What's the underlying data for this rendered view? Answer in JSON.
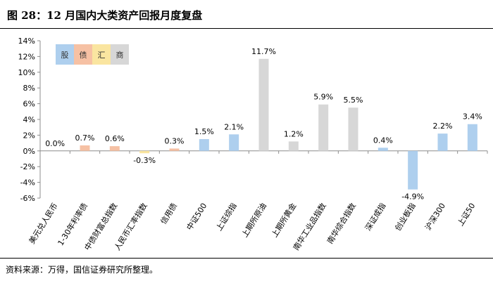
{
  "header": {
    "title": "图 28：12 月国内大类资产回报月度复盘"
  },
  "footer": {
    "source": "资料来源：万得，国信证券研究所整理。"
  },
  "colors": {
    "equity": "#aecfee",
    "bond": "#f6c1a4",
    "fx": "#fae5a0",
    "commodity": "#d7d7d7"
  },
  "chart_data": {
    "type": "bar",
    "title": "",
    "xlabel": "",
    "ylabel": "",
    "ylim": [
      -6,
      14
    ],
    "yticks": [
      "-6%",
      "-4%",
      "-2%",
      "0%",
      "2%",
      "4%",
      "6%",
      "8%",
      "10%",
      "12%",
      "14%"
    ],
    "grid": false,
    "legend": {
      "placement": "top-left",
      "items": [
        {
          "label": "股",
          "class": "equity"
        },
        {
          "label": "债",
          "class": "bond"
        },
        {
          "label": "汇",
          "class": "fx"
        },
        {
          "label": "商",
          "class": "commodity"
        }
      ]
    },
    "categories": [
      "美元兑人民币",
      "1-30年利率债",
      "中债财富总指数",
      "人民币汇率指数",
      "信用债",
      "中证500",
      "上证综指",
      "上期所原油",
      "上期所黄金",
      "南华工业品指数",
      "南华综合指数",
      "深证成指",
      "创业板指",
      "沪深300",
      "上证50"
    ],
    "values": [
      0.0,
      0.7,
      0.6,
      -0.3,
      0.3,
      1.5,
      2.1,
      11.7,
      1.2,
      5.9,
      5.5,
      0.4,
      -4.9,
      2.2,
      3.4
    ],
    "value_labels": [
      "0.0%",
      "0.7%",
      "0.6%",
      "-0.3%",
      "0.3%",
      "1.5%",
      "2.1%",
      "11.7%",
      "1.2%",
      "5.9%",
      "5.5%",
      "0.4%",
      "-4.9%",
      "2.2%",
      "3.4%"
    ],
    "classes": [
      "fx",
      "bond",
      "bond",
      "fx",
      "bond",
      "equity",
      "equity",
      "commodity",
      "commodity",
      "commodity",
      "commodity",
      "equity",
      "equity",
      "equity",
      "equity"
    ]
  }
}
